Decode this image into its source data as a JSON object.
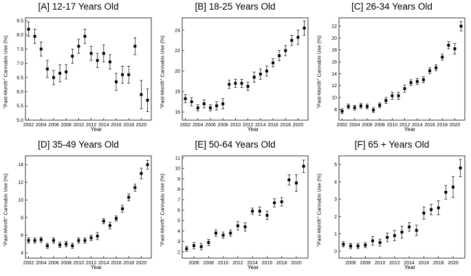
{
  "figure": {
    "point_color": "#000000",
    "axis_color": "#000000"
  },
  "chart_data": [
    {
      "type": "scatter",
      "title": "[A] 12-17 Years Old",
      "xlabel": "Year",
      "ylabel": "\"Past-Month\" Cannabis Use (%)",
      "xlim": [
        2001.5,
        2021.6
      ],
      "ylim": [
        5.0,
        8.6
      ],
      "xticks": [
        "2002",
        "2004",
        "2006",
        "2008",
        "2010",
        "2012",
        "2014",
        "2016",
        "2018",
        "2020"
      ],
      "yticks": [
        "5.0",
        "5.5",
        "6.0",
        "6.5",
        "7.0",
        "7.5",
        "8.0",
        "8.5"
      ],
      "points": [
        {
          "x": 2002,
          "y": 8.2,
          "err": 0.25
        },
        {
          "x": 2003,
          "y": 7.95,
          "err": 0.25
        },
        {
          "x": 2004,
          "y": 7.5,
          "err": 0.25
        },
        {
          "x": 2005,
          "y": 6.8,
          "err": 0.3
        },
        {
          "x": 2006,
          "y": 6.5,
          "err": 0.25
        },
        {
          "x": 2007,
          "y": 6.65,
          "err": 0.3
        },
        {
          "x": 2008,
          "y": 6.7,
          "err": 0.25
        },
        {
          "x": 2009,
          "y": 7.25,
          "err": 0.25
        },
        {
          "x": 2010,
          "y": 7.6,
          "err": 0.25
        },
        {
          "x": 2011,
          "y": 7.95,
          "err": 0.25
        },
        {
          "x": 2012,
          "y": 7.35,
          "err": 0.25
        },
        {
          "x": 2013,
          "y": 7.1,
          "err": 0.25
        },
        {
          "x": 2014,
          "y": 7.35,
          "err": 0.3
        },
        {
          "x": 2015,
          "y": 7.05,
          "err": 0.25
        },
        {
          "x": 2016,
          "y": 6.35,
          "err": 0.3
        },
        {
          "x": 2017,
          "y": 6.6,
          "err": 0.3
        },
        {
          "x": 2018,
          "y": 6.6,
          "err": 0.3
        },
        {
          "x": 2019,
          "y": 7.6,
          "err": 0.3
        },
        {
          "x": 2020,
          "y": 5.9,
          "err": 0.5
        },
        {
          "x": 2021,
          "y": 5.7,
          "err": 0.4
        }
      ]
    },
    {
      "type": "scatter",
      "title": "[B] 18-25 Years Old",
      "xlabel": "Year",
      "ylabel": "\"Past-Month\" Cannabis Use (%)",
      "xlim": [
        2001.5,
        2021.6
      ],
      "ylim": [
        15.2,
        25.2
      ],
      "xticks": [
        "2002",
        "2004",
        "2006",
        "2008",
        "2010",
        "2012",
        "2014",
        "2016",
        "2018",
        "2020"
      ],
      "yticks": [
        "16",
        "18",
        "20",
        "22",
        "24"
      ],
      "points": [
        {
          "x": 2002,
          "y": 17.3,
          "err": 0.4
        },
        {
          "x": 2003,
          "y": 17.0,
          "err": 0.4
        },
        {
          "x": 2004,
          "y": 16.4,
          "err": 0.3
        },
        {
          "x": 2005,
          "y": 16.8,
          "err": 0.4
        },
        {
          "x": 2006,
          "y": 16.4,
          "err": 0.3
        },
        {
          "x": 2007,
          "y": 16.6,
          "err": 0.4
        },
        {
          "x": 2008,
          "y": 16.8,
          "err": 0.5
        },
        {
          "x": 2009,
          "y": 18.7,
          "err": 0.4
        },
        {
          "x": 2010,
          "y": 18.8,
          "err": 0.4
        },
        {
          "x": 2011,
          "y": 18.8,
          "err": 0.4
        },
        {
          "x": 2012,
          "y": 18.5,
          "err": 0.4
        },
        {
          "x": 2013,
          "y": 19.4,
          "err": 0.5
        },
        {
          "x": 2014,
          "y": 19.7,
          "err": 0.5
        },
        {
          "x": 2015,
          "y": 20.0,
          "err": 0.5
        },
        {
          "x": 2016,
          "y": 20.8,
          "err": 0.4
        },
        {
          "x": 2017,
          "y": 21.5,
          "err": 0.5
        },
        {
          "x": 2018,
          "y": 22.0,
          "err": 0.5
        },
        {
          "x": 2019,
          "y": 23.0,
          "err": 0.5
        },
        {
          "x": 2020,
          "y": 23.3,
          "err": 0.7
        },
        {
          "x": 2021,
          "y": 24.2,
          "err": 0.7
        }
      ]
    },
    {
      "type": "scatter",
      "title": "[C] 26-34 Years Old",
      "xlabel": "Year",
      "ylabel": "\"Past-Month\" Cannabis Use (%)",
      "xlim": [
        2001.5,
        2021.6
      ],
      "ylim": [
        6.2,
        23.4
      ],
      "xticks": [
        "2002",
        "2004",
        "2006",
        "2008",
        "2010",
        "2012",
        "2014",
        "2016",
        "2018",
        "2020"
      ],
      "yticks": [
        "8",
        "10",
        "12",
        "14",
        "16",
        "18",
        "20",
        "22"
      ],
      "points": [
        {
          "x": 2002,
          "y": 7.7,
          "err": 0.4
        },
        {
          "x": 2003,
          "y": 8.5,
          "err": 0.4
        },
        {
          "x": 2004,
          "y": 8.3,
          "err": 0.4
        },
        {
          "x": 2005,
          "y": 8.6,
          "err": 0.4
        },
        {
          "x": 2006,
          "y": 8.5,
          "err": 0.4
        },
        {
          "x": 2007,
          "y": 7.9,
          "err": 0.4
        },
        {
          "x": 2008,
          "y": 8.7,
          "err": 0.4
        },
        {
          "x": 2009,
          "y": 9.5,
          "err": 0.5
        },
        {
          "x": 2010,
          "y": 10.3,
          "err": 0.6
        },
        {
          "x": 2011,
          "y": 10.3,
          "err": 0.6
        },
        {
          "x": 2012,
          "y": 11.5,
          "err": 0.6
        },
        {
          "x": 2013,
          "y": 12.5,
          "err": 0.5
        },
        {
          "x": 2014,
          "y": 12.7,
          "err": 0.5
        },
        {
          "x": 2015,
          "y": 13.0,
          "err": 0.5
        },
        {
          "x": 2016,
          "y": 14.5,
          "err": 0.5
        },
        {
          "x": 2017,
          "y": 15.0,
          "err": 0.5
        },
        {
          "x": 2018,
          "y": 16.8,
          "err": 0.5
        },
        {
          "x": 2019,
          "y": 18.8,
          "err": 0.6
        },
        {
          "x": 2020,
          "y": 18.2,
          "err": 0.9
        },
        {
          "x": 2021,
          "y": 22.0,
          "err": 0.8
        }
      ]
    },
    {
      "type": "scatter",
      "title": "[D] 35-49 Years Old",
      "xlabel": "Year",
      "ylabel": "\"Past-Month\" Cannabis Use (%)",
      "xlim": [
        2001.5,
        2021.6
      ],
      "ylim": [
        3.4,
        15.0
      ],
      "xticks": [
        "2002",
        "2004",
        "2006",
        "2008",
        "2010",
        "2012",
        "2014",
        "2016",
        "2018",
        "2020"
      ],
      "yticks": [
        "4",
        "6",
        "8",
        "10",
        "12",
        "14"
      ],
      "points": [
        {
          "x": 2002,
          "y": 5.4,
          "err": 0.3
        },
        {
          "x": 2003,
          "y": 5.4,
          "err": 0.3
        },
        {
          "x": 2004,
          "y": 5.5,
          "err": 0.3
        },
        {
          "x": 2005,
          "y": 4.8,
          "err": 0.3
        },
        {
          "x": 2006,
          "y": 5.4,
          "err": 0.3
        },
        {
          "x": 2007,
          "y": 4.9,
          "err": 0.3
        },
        {
          "x": 2008,
          "y": 5.0,
          "err": 0.3
        },
        {
          "x": 2009,
          "y": 4.8,
          "err": 0.3
        },
        {
          "x": 2010,
          "y": 5.4,
          "err": 0.3
        },
        {
          "x": 2011,
          "y": 5.4,
          "err": 0.3
        },
        {
          "x": 2012,
          "y": 5.7,
          "err": 0.3
        },
        {
          "x": 2013,
          "y": 5.9,
          "err": 0.4
        },
        {
          "x": 2014,
          "y": 7.6,
          "err": 0.3
        },
        {
          "x": 2015,
          "y": 7.1,
          "err": 0.4
        },
        {
          "x": 2016,
          "y": 7.9,
          "err": 0.3
        },
        {
          "x": 2017,
          "y": 9.0,
          "err": 0.4
        },
        {
          "x": 2018,
          "y": 10.3,
          "err": 0.4
        },
        {
          "x": 2019,
          "y": 11.4,
          "err": 0.4
        },
        {
          "x": 2020,
          "y": 13.0,
          "err": 0.6
        },
        {
          "x": 2021,
          "y": 14.0,
          "err": 0.5
        }
      ]
    },
    {
      "type": "scatter",
      "title": "[E] 50-64 Years Old",
      "xlabel": "Year",
      "ylabel": "\"Past-Month\" Cannabis Use (%)",
      "xlim": [
        2004.4,
        2021.6
      ],
      "ylim": [
        1.4,
        11.2
      ],
      "xticks": [
        "2006",
        "2008",
        "2010",
        "2012",
        "2014",
        "2016",
        "2018",
        "2020"
      ],
      "yticks": [
        "2",
        "3",
        "4",
        "5",
        "6",
        "7",
        "8",
        "9",
        "10",
        "11"
      ],
      "points": [
        {
          "x": 2005,
          "y": 2.3,
          "err": 0.25
        },
        {
          "x": 2006,
          "y": 2.6,
          "err": 0.3
        },
        {
          "x": 2007,
          "y": 2.5,
          "err": 0.3
        },
        {
          "x": 2008,
          "y": 2.9,
          "err": 0.3
        },
        {
          "x": 2009,
          "y": 3.8,
          "err": 0.3
        },
        {
          "x": 2010,
          "y": 3.6,
          "err": 0.3
        },
        {
          "x": 2011,
          "y": 3.8,
          "err": 0.3
        },
        {
          "x": 2012,
          "y": 4.5,
          "err": 0.4
        },
        {
          "x": 2013,
          "y": 4.4,
          "err": 0.4
        },
        {
          "x": 2014,
          "y": 5.9,
          "err": 0.3
        },
        {
          "x": 2015,
          "y": 5.9,
          "err": 0.4
        },
        {
          "x": 2016,
          "y": 5.5,
          "err": 0.4
        },
        {
          "x": 2017,
          "y": 6.7,
          "err": 0.4
        },
        {
          "x": 2018,
          "y": 6.8,
          "err": 0.4
        },
        {
          "x": 2019,
          "y": 8.9,
          "err": 0.5
        },
        {
          "x": 2020,
          "y": 8.6,
          "err": 0.8
        },
        {
          "x": 2021,
          "y": 10.2,
          "err": 0.6
        }
      ]
    },
    {
      "type": "scatter",
      "title": "[F] 65 + Years Old",
      "xlabel": "Year",
      "ylabel": "\"Past-Month\" Cannabis Use (%)",
      "xlim": [
        2004.4,
        2021.6
      ],
      "ylim": [
        -0.4,
        5.5
      ],
      "xticks": [
        "2006",
        "2008",
        "2010",
        "2012",
        "2014",
        "2016",
        "2018",
        "2020"
      ],
      "yticks": [
        "0",
        "1",
        "2",
        "3",
        "4",
        "5"
      ],
      "points": [
        {
          "x": 2005,
          "y": 0.4,
          "err": 0.15
        },
        {
          "x": 2006,
          "y": 0.3,
          "err": 0.15
        },
        {
          "x": 2007,
          "y": 0.3,
          "err": 0.15
        },
        {
          "x": 2008,
          "y": 0.35,
          "err": 0.15
        },
        {
          "x": 2009,
          "y": 0.6,
          "err": 0.25
        },
        {
          "x": 2010,
          "y": 0.5,
          "err": 0.2
        },
        {
          "x": 2011,
          "y": 0.8,
          "err": 0.25
        },
        {
          "x": 2012,
          "y": 0.9,
          "err": 0.3
        },
        {
          "x": 2013,
          "y": 1.1,
          "err": 0.35
        },
        {
          "x": 2014,
          "y": 1.4,
          "err": 0.25
        },
        {
          "x": 2015,
          "y": 1.2,
          "err": 0.3
        },
        {
          "x": 2016,
          "y": 2.2,
          "err": 0.35
        },
        {
          "x": 2017,
          "y": 2.4,
          "err": 0.3
        },
        {
          "x": 2018,
          "y": 2.5,
          "err": 0.4
        },
        {
          "x": 2019,
          "y": 3.4,
          "err": 0.4
        },
        {
          "x": 2020,
          "y": 3.7,
          "err": 0.6
        },
        {
          "x": 2021,
          "y": 4.8,
          "err": 0.5
        }
      ]
    }
  ]
}
